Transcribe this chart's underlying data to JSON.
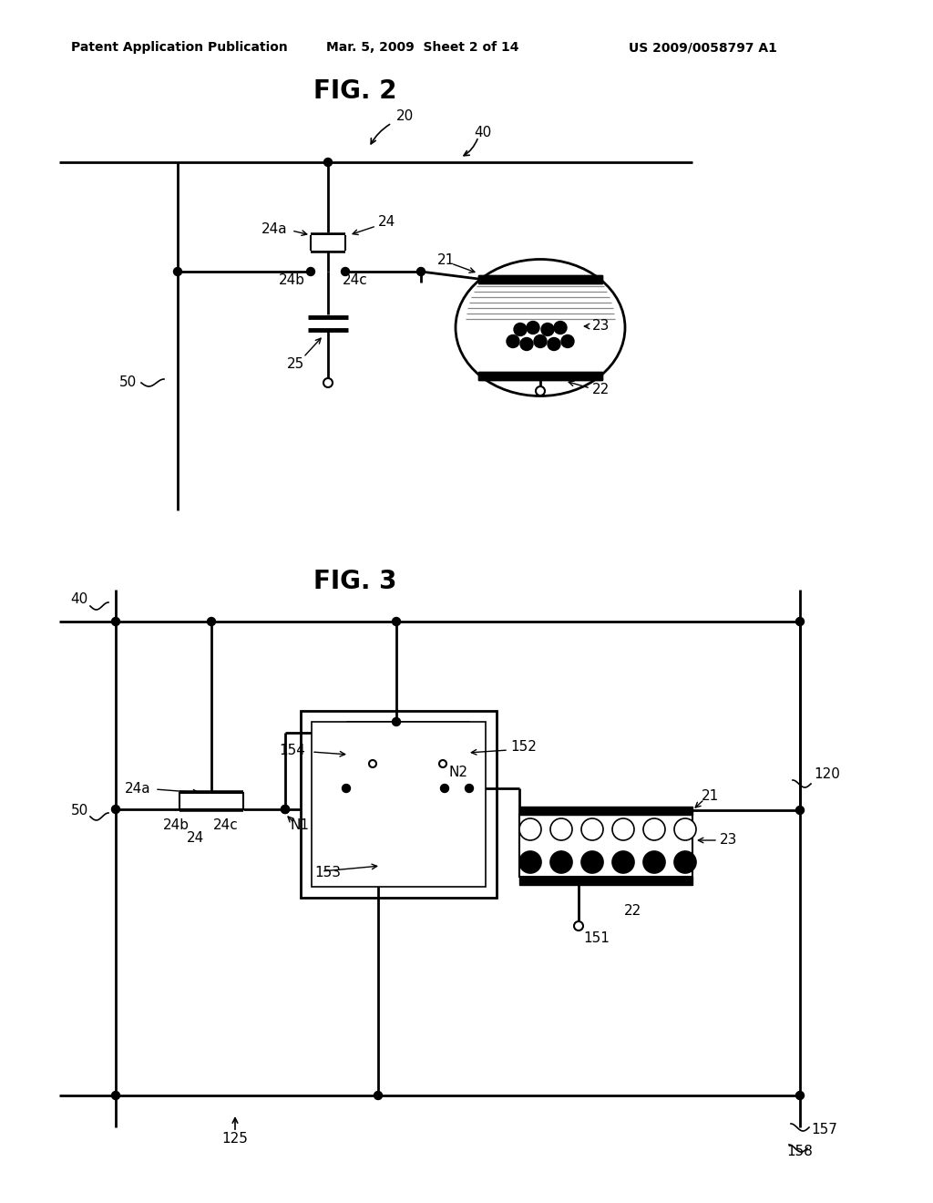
{
  "header_left": "Patent Application Publication",
  "header_mid": "Mar. 5, 2009  Sheet 2 of 14",
  "header_right": "US 2009/0058797 A1",
  "fig2_title": "FIG. 2",
  "fig3_title": "FIG. 3",
  "bg_color": "#ffffff"
}
